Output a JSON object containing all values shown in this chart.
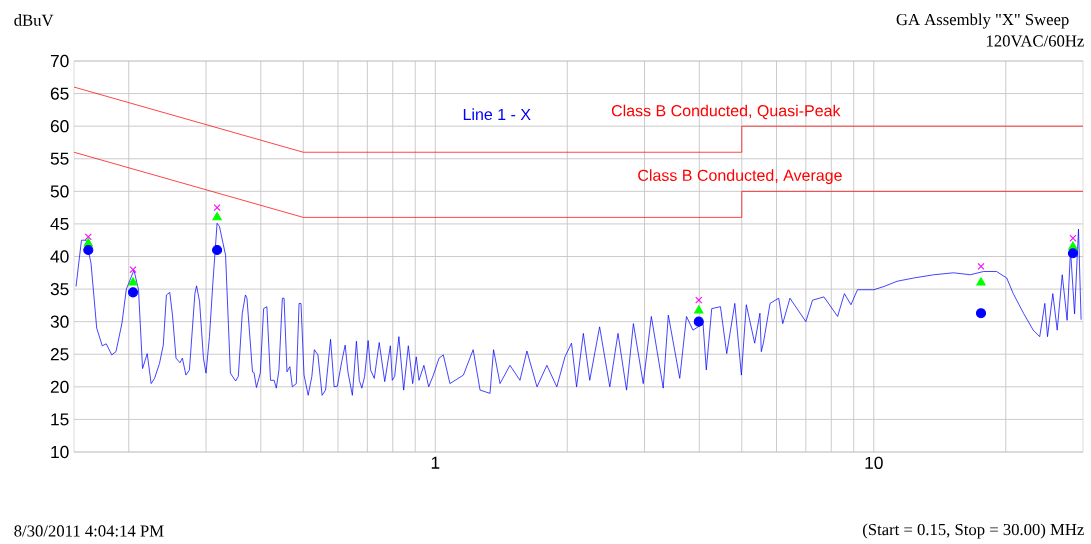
{
  "chart_data": {
    "type": "line",
    "title": "GA Assembly \"X\" Sweep",
    "subtitle": "120VAC/60Hz",
    "ylabel": "dBuV",
    "annotations": [
      "8/30/2011 4:04:14 PM",
      "(Start = 0.15, Stop = 30.00) MHz"
    ],
    "log": "x",
    "grid": true,
    "xlim": [
      0.15,
      30
    ],
    "ylim": [
      10,
      70
    ],
    "xticks": [
      {
        "value": 0.2,
        "label": null
      },
      {
        "value": 0.3,
        "label": null
      },
      {
        "value": 0.4,
        "label": null
      },
      {
        "value": 0.5,
        "label": null
      },
      {
        "value": 0.6,
        "label": null
      },
      {
        "value": 0.7,
        "label": null
      },
      {
        "value": 0.8,
        "label": null
      },
      {
        "value": 0.9,
        "label": null
      },
      1,
      {
        "value": 2,
        "label": null
      },
      {
        "value": 3,
        "label": null
      },
      {
        "value": 4,
        "label": null
      },
      {
        "value": 5,
        "label": null
      },
      {
        "value": 6,
        "label": null
      },
      {
        "value": 7,
        "label": null
      },
      {
        "value": 8,
        "label": null
      },
      {
        "value": 9,
        "label": null
      },
      10,
      {
        "value": 20,
        "label": null
      }
    ],
    "yticks": [
      10,
      15,
      20,
      25,
      30,
      35,
      40,
      45,
      50,
      55,
      60,
      65,
      70
    ],
    "series": [
      {
        "name": "Line 1 - X",
        "color": "#0000ff",
        "marker": "none",
        "x": [
          0.1516,
          0.156,
          0.1598,
          0.164,
          0.169,
          0.174,
          0.1777,
          0.1829,
          0.187,
          0.1929,
          0.1975,
          0.2055,
          0.2105,
          0.215,
          0.2203,
          0.2249,
          0.229,
          0.235,
          0.2397,
          0.2437,
          0.248,
          0.2516,
          0.2563,
          0.2616,
          0.265,
          0.27,
          0.275,
          0.283,
          0.2855,
          0.29,
          0.296,
          0.3,
          0.3055,
          0.311,
          0.318,
          0.322,
          0.3325,
          0.341,
          0.3505,
          0.3555,
          0.363,
          0.369,
          0.372,
          0.383,
          0.386,
          0.391,
          0.399,
          0.406,
          0.413,
          0.421,
          0.429,
          0.434,
          0.44,
          0.448,
          0.452,
          0.459,
          0.466,
          0.472,
          0.482,
          0.489,
          0.494,
          0.502,
          0.513,
          0.523,
          0.53,
          0.54,
          0.552,
          0.562,
          0.577,
          0.588,
          0.598,
          0.612,
          0.623,
          0.632,
          0.647,
          0.661,
          0.671,
          0.68,
          0.69,
          0.703,
          0.712,
          0.726,
          0.745,
          0.767,
          0.79,
          0.798,
          0.808,
          0.826,
          0.847,
          0.868,
          0.888,
          0.905,
          0.918,
          0.942,
          0.966,
          0.99,
          1.02,
          1.043,
          1.08,
          1.159,
          1.22,
          1.265,
          1.333,
          1.358,
          1.405,
          1.48,
          1.56,
          1.618,
          1.706,
          1.797,
          1.893,
          1.976,
          2.045,
          2.1,
          2.176,
          2.25,
          2.37,
          2.5,
          2.61,
          2.73,
          2.83,
          2.98,
          3.11,
          3.31,
          3.4,
          3.61,
          3.74,
          3.87,
          4.08,
          4.15,
          4.27,
          4.47,
          4.62,
          4.82,
          4.99,
          5.12,
          5.35,
          5.5,
          5.54,
          5.6,
          5.8,
          6.07,
          6.2,
          6.44,
          7.0,
          7.25,
          7.7,
          8.27,
          8.57,
          8.87,
          9.18,
          10.0,
          10.55,
          11.3,
          12.33,
          13.7,
          15.2,
          16.6,
          17.8,
          19.05,
          20.1,
          20.8,
          21.95,
          23.1,
          23.9,
          24.55,
          24.9,
          25.6,
          26.2,
          26.9,
          27.6,
          28.1,
          28.7,
          29.3,
          29.7
        ],
        "values": [
          35.4,
          42.5,
          42.5,
          39.0,
          29.0,
          26.3,
          26.6,
          24.9,
          25.4,
          29.7,
          35.0,
          37.9,
          34.9,
          22.8,
          25.1,
          20.5,
          21.3,
          23.6,
          26.4,
          34.1,
          34.5,
          31.0,
          24.4,
          23.7,
          24.4,
          21.8,
          22.6,
          34.3,
          35.5,
          33.1,
          24.4,
          22.1,
          27.7,
          35.9,
          45.1,
          44.6,
          40.2,
          22.1,
          20.9,
          21.6,
          31.3,
          34.1,
          33.6,
          22.3,
          22.2,
          19.9,
          22.1,
          32.0,
          32.3,
          21.0,
          21.0,
          19.8,
          22.6,
          33.6,
          33.6,
          22.3,
          23.1,
          20.0,
          20.5,
          32.8,
          32.8,
          21.8,
          18.7,
          21.6,
          25.7,
          24.9,
          18.7,
          19.5,
          27.3,
          20.0,
          20.1,
          23.9,
          26.4,
          22.3,
          18.7,
          27.0,
          21.0,
          19.8,
          21.6,
          27.1,
          22.6,
          21.3,
          26.8,
          20.8,
          26.3,
          21.0,
          21.6,
          27.7,
          19.5,
          26.3,
          20.5,
          24.6,
          21.0,
          23.3,
          20.0,
          21.8,
          24.4,
          24.9,
          20.5,
          21.8,
          25.7,
          19.5,
          19.0,
          25.7,
          20.5,
          23.3,
          21.0,
          25.5,
          20.0,
          23.3,
          20.0,
          24.6,
          26.7,
          20.0,
          28.2,
          21.0,
          29.2,
          20.0,
          28.2,
          19.5,
          29.7,
          20.5,
          30.8,
          19.8,
          31.0,
          21.3,
          30.8,
          28.7,
          29.7,
          22.6,
          32.0,
          32.3,
          25.1,
          32.8,
          21.8,
          32.6,
          26.7,
          31.3,
          25.4,
          26.7,
          32.8,
          33.6,
          29.7,
          33.6,
          30.0,
          33.3,
          33.8,
          30.8,
          34.3,
          32.6,
          34.9,
          34.9,
          35.4,
          36.2,
          36.7,
          37.2,
          37.5,
          37.2,
          37.7,
          37.7,
          36.7,
          34.3,
          31.3,
          28.7,
          27.7,
          32.8,
          27.7,
          34.3,
          28.7,
          37.2,
          30.2,
          41.0,
          31.2,
          44.2,
          30.3
        ]
      },
      {
        "name": "Class B Conducted, Quasi-Peak",
        "color": "#ff0000",
        "marker": "none",
        "x": [
          0.15,
          0.5,
          5,
          5,
          30
        ],
        "values": [
          66,
          56,
          56,
          60,
          60
        ]
      },
      {
        "name": "Class B Conducted, Average",
        "color": "#ff0000",
        "marker": "none",
        "x": [
          0.15,
          0.5,
          5,
          5,
          30
        ],
        "values": [
          56,
          46,
          46,
          50,
          50
        ]
      },
      {
        "type": "scatter",
        "color": "#ff00ff",
        "marker": "cross",
        "x": [
          0.1617,
          0.2045,
          0.318,
          3.99,
          17.56,
          28.46
        ],
        "values": [
          43,
          38,
          47.5,
          33.3,
          38.5,
          42.8
        ]
      },
      {
        "type": "scatter",
        "color": "#00ff00",
        "marker": "triangle",
        "x": [
          0.1617,
          0.2045,
          0.318,
          3.99,
          17.56,
          28.46
        ],
        "values": [
          42,
          36,
          46,
          31.7,
          36,
          41.5
        ]
      },
      {
        "type": "scatter",
        "color": "#0000ff",
        "marker": "circle",
        "x": [
          0.1617,
          0.2045,
          0.318,
          3.99,
          17.56,
          28.46
        ],
        "values": [
          41,
          34.5,
          41,
          30,
          31.3,
          40.5
        ]
      }
    ]
  }
}
